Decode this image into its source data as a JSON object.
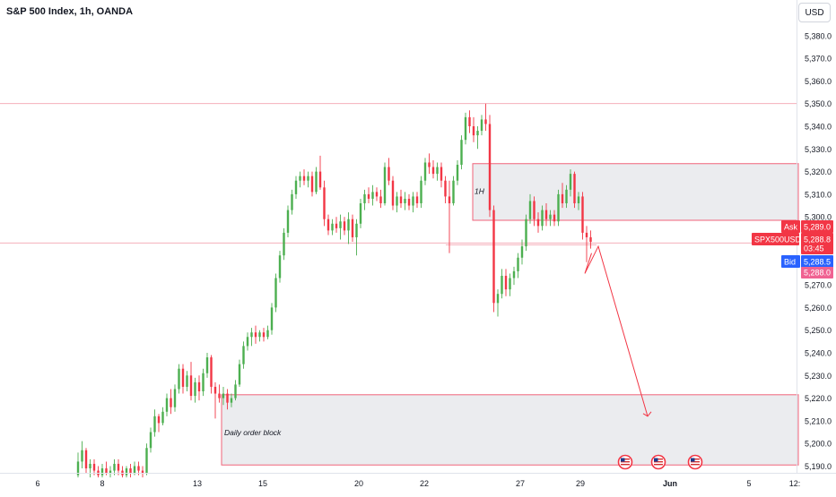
{
  "header": {
    "title": "S&P 500 Index, 1h, OANDA",
    "currency": "USD"
  },
  "chart_data": {
    "type": "candlestick",
    "title": "S&P 500 Index, 1h, OANDA",
    "ylim": [
      5186,
      5384
    ],
    "y_ticks": [
      5190,
      5200,
      5210,
      5220,
      5230,
      5240,
      5250,
      5260,
      5270,
      5280,
      5290,
      5300,
      5310,
      5320,
      5330,
      5340,
      5350,
      5360,
      5370,
      5380
    ],
    "y_tick_labels": [
      "5,190.0",
      "5,200.0",
      "5,210.0",
      "5,220.0",
      "5,230.0",
      "5,240.0",
      "5,250.0",
      "5,260.0",
      "5,270.0",
      "5,280.0",
      "5,290.0",
      "5,300.0",
      "5,310.0",
      "5,320.0",
      "5,330.0",
      "5,340.0",
      "5,350.0",
      "5,360.0",
      "5,370.0",
      "5,380.0"
    ],
    "x_ticks": [
      "6",
      "8",
      "13",
      "15",
      "20",
      "22",
      "27",
      "29",
      "Jun",
      "5",
      "12:"
    ],
    "up_color": "#4caf50",
    "down_color": "#f23645",
    "zones": [
      {
        "label": "1H",
        "y_top": 5323.5,
        "y_bottom": 5298.5
      },
      {
        "label": "Daily order block",
        "y_top": 5221.5,
        "y_bottom": 5190.5
      }
    ],
    "projection": [
      {
        "t": 0,
        "y": 5284
      },
      {
        "t": 1,
        "y": 5275
      },
      {
        "t": 2,
        "y": 5287
      },
      {
        "t": 3,
        "y": 5212
      }
    ],
    "reference_levels": [
      5350,
      5288.5
    ],
    "price_tags": {
      "ask_label": "Ask",
      "ask_value": "5,289.0",
      "symbol": "SPX500USD",
      "last_value": "5,288.8",
      "countdown": "03:45",
      "bid_label": "Bid",
      "bid_value": "5,288.5",
      "low_value": "5,288.0"
    },
    "event_icons": 3,
    "candles": [
      {
        "o": 5186,
        "h": 5196,
        "l": 5185,
        "c": 5192
      },
      {
        "o": 5192,
        "h": 5201,
        "l": 5189,
        "c": 5197
      },
      {
        "o": 5197,
        "h": 5198,
        "l": 5187,
        "c": 5189
      },
      {
        "o": 5189,
        "h": 5193,
        "l": 5185,
        "c": 5191
      },
      {
        "o": 5191,
        "h": 5193,
        "l": 5186,
        "c": 5188
      },
      {
        "o": 5188,
        "h": 5190,
        "l": 5185,
        "c": 5186
      },
      {
        "o": 5186,
        "h": 5191,
        "l": 5185,
        "c": 5189
      },
      {
        "o": 5189,
        "h": 5192,
        "l": 5186,
        "c": 5187
      },
      {
        "o": 5187,
        "h": 5190,
        "l": 5185,
        "c": 5188
      },
      {
        "o": 5188,
        "h": 5193,
        "l": 5186,
        "c": 5191
      },
      {
        "o": 5191,
        "h": 5193,
        "l": 5186,
        "c": 5188
      },
      {
        "o": 5188,
        "h": 5190,
        "l": 5185,
        "c": 5186
      },
      {
        "o": 5186,
        "h": 5190,
        "l": 5185,
        "c": 5189
      },
      {
        "o": 5189,
        "h": 5191,
        "l": 5185,
        "c": 5187
      },
      {
        "o": 5187,
        "h": 5192,
        "l": 5186,
        "c": 5190
      },
      {
        "o": 5190,
        "h": 5192,
        "l": 5186,
        "c": 5188
      },
      {
        "o": 5188,
        "h": 5190,
        "l": 5185,
        "c": 5187
      },
      {
        "o": 5187,
        "h": 5200,
        "l": 5186,
        "c": 5198
      },
      {
        "o": 5198,
        "h": 5207,
        "l": 5196,
        "c": 5205
      },
      {
        "o": 5205,
        "h": 5215,
        "l": 5203,
        "c": 5212
      },
      {
        "o": 5212,
        "h": 5213,
        "l": 5205,
        "c": 5209
      },
      {
        "o": 5209,
        "h": 5216,
        "l": 5208,
        "c": 5214
      },
      {
        "o": 5214,
        "h": 5222,
        "l": 5212,
        "c": 5220
      },
      {
        "o": 5220,
        "h": 5224,
        "l": 5213,
        "c": 5216
      },
      {
        "o": 5216,
        "h": 5226,
        "l": 5214,
        "c": 5224
      },
      {
        "o": 5224,
        "h": 5235,
        "l": 5222,
        "c": 5233
      },
      {
        "o": 5233,
        "h": 5235,
        "l": 5222,
        "c": 5225
      },
      {
        "o": 5225,
        "h": 5232,
        "l": 5223,
        "c": 5230
      },
      {
        "o": 5230,
        "h": 5236,
        "l": 5219,
        "c": 5221
      },
      {
        "o": 5221,
        "h": 5229,
        "l": 5218,
        "c": 5227
      },
      {
        "o": 5227,
        "h": 5230,
        "l": 5219,
        "c": 5223
      },
      {
        "o": 5223,
        "h": 5233,
        "l": 5221,
        "c": 5231
      },
      {
        "o": 5231,
        "h": 5240,
        "l": 5229,
        "c": 5238
      },
      {
        "o": 5238,
        "h": 5239,
        "l": 5222,
        "c": 5225
      },
      {
        "o": 5225,
        "h": 5227,
        "l": 5211,
        "c": 5222
      },
      {
        "o": 5222,
        "h": 5226,
        "l": 5218,
        "c": 5220
      },
      {
        "o": 5220,
        "h": 5225,
        "l": 5217,
        "c": 5222
      },
      {
        "o": 5222,
        "h": 5224,
        "l": 5215,
        "c": 5218
      },
      {
        "o": 5218,
        "h": 5222,
        "l": 5216,
        "c": 5220
      },
      {
        "o": 5220,
        "h": 5228,
        "l": 5219,
        "c": 5226
      },
      {
        "o": 5226,
        "h": 5237,
        "l": 5225,
        "c": 5235
      },
      {
        "o": 5235,
        "h": 5245,
        "l": 5233,
        "c": 5243
      },
      {
        "o": 5243,
        "h": 5249,
        "l": 5241,
        "c": 5247
      },
      {
        "o": 5247,
        "h": 5251,
        "l": 5243,
        "c": 5249
      },
      {
        "o": 5249,
        "h": 5252,
        "l": 5244,
        "c": 5247
      },
      {
        "o": 5247,
        "h": 5250,
        "l": 5245,
        "c": 5249
      },
      {
        "o": 5249,
        "h": 5251,
        "l": 5245,
        "c": 5247
      },
      {
        "o": 5247,
        "h": 5252,
        "l": 5246,
        "c": 5250
      },
      {
        "o": 5250,
        "h": 5262,
        "l": 5248,
        "c": 5260
      },
      {
        "o": 5260,
        "h": 5275,
        "l": 5258,
        "c": 5273
      },
      {
        "o": 5273,
        "h": 5285,
        "l": 5271,
        "c": 5283
      },
      {
        "o": 5283,
        "h": 5295,
        "l": 5281,
        "c": 5293
      },
      {
        "o": 5293,
        "h": 5305,
        "l": 5291,
        "c": 5303
      },
      {
        "o": 5303,
        "h": 5312,
        "l": 5301,
        "c": 5310
      },
      {
        "o": 5310,
        "h": 5318,
        "l": 5308,
        "c": 5316
      },
      {
        "o": 5316,
        "h": 5320,
        "l": 5313,
        "c": 5318
      },
      {
        "o": 5318,
        "h": 5321,
        "l": 5314,
        "c": 5316
      },
      {
        "o": 5316,
        "h": 5320,
        "l": 5313,
        "c": 5318
      },
      {
        "o": 5318,
        "h": 5320,
        "l": 5309,
        "c": 5311
      },
      {
        "o": 5311,
        "h": 5322,
        "l": 5310,
        "c": 5320
      },
      {
        "o": 5320,
        "h": 5327,
        "l": 5312,
        "c": 5313
      },
      {
        "o": 5313,
        "h": 5316,
        "l": 5296,
        "c": 5299
      },
      {
        "o": 5299,
        "h": 5301,
        "l": 5292,
        "c": 5294
      },
      {
        "o": 5294,
        "h": 5299,
        "l": 5292,
        "c": 5297
      },
      {
        "o": 5297,
        "h": 5300,
        "l": 5293,
        "c": 5295
      },
      {
        "o": 5295,
        "h": 5301,
        "l": 5290,
        "c": 5298
      },
      {
        "o": 5298,
        "h": 5300,
        "l": 5292,
        "c": 5294
      },
      {
        "o": 5294,
        "h": 5302,
        "l": 5288,
        "c": 5299
      },
      {
        "o": 5299,
        "h": 5301,
        "l": 5289,
        "c": 5291
      },
      {
        "o": 5291,
        "h": 5299,
        "l": 5283,
        "c": 5297
      },
      {
        "o": 5297,
        "h": 5308,
        "l": 5295,
        "c": 5306
      },
      {
        "o": 5306,
        "h": 5312,
        "l": 5303,
        "c": 5310
      },
      {
        "o": 5310,
        "h": 5313,
        "l": 5306,
        "c": 5308
      },
      {
        "o": 5308,
        "h": 5314,
        "l": 5305,
        "c": 5311
      },
      {
        "o": 5311,
        "h": 5313,
        "l": 5307,
        "c": 5309
      },
      {
        "o": 5309,
        "h": 5312,
        "l": 5304,
        "c": 5306
      },
      {
        "o": 5306,
        "h": 5324,
        "l": 5305,
        "c": 5322
      },
      {
        "o": 5322,
        "h": 5326,
        "l": 5314,
        "c": 5316
      },
      {
        "o": 5316,
        "h": 5318,
        "l": 5303,
        "c": 5305
      },
      {
        "o": 5305,
        "h": 5311,
        "l": 5302,
        "c": 5309
      },
      {
        "o": 5309,
        "h": 5312,
        "l": 5304,
        "c": 5306
      },
      {
        "o": 5306,
        "h": 5311,
        "l": 5303,
        "c": 5308
      },
      {
        "o": 5308,
        "h": 5310,
        "l": 5303,
        "c": 5305
      },
      {
        "o": 5305,
        "h": 5311,
        "l": 5302,
        "c": 5309
      },
      {
        "o": 5309,
        "h": 5311,
        "l": 5304,
        "c": 5306
      },
      {
        "o": 5306,
        "h": 5318,
        "l": 5304,
        "c": 5316
      },
      {
        "o": 5316,
        "h": 5326,
        "l": 5314,
        "c": 5324
      },
      {
        "o": 5324,
        "h": 5328,
        "l": 5319,
        "c": 5322
      },
      {
        "o": 5322,
        "h": 5325,
        "l": 5317,
        "c": 5319
      },
      {
        "o": 5319,
        "h": 5324,
        "l": 5316,
        "c": 5322
      },
      {
        "o": 5322,
        "h": 5324,
        "l": 5313,
        "c": 5316
      },
      {
        "o": 5316,
        "h": 5318,
        "l": 5306,
        "c": 5309
      },
      {
        "o": 5309,
        "h": 5316,
        "l": 5284,
        "c": 5306
      },
      {
        "o": 5306,
        "h": 5318,
        "l": 5305,
        "c": 5316
      },
      {
        "o": 5316,
        "h": 5325,
        "l": 5314,
        "c": 5323
      },
      {
        "o": 5323,
        "h": 5336,
        "l": 5321,
        "c": 5334
      },
      {
        "o": 5334,
        "h": 5346,
        "l": 5332,
        "c": 5344
      },
      {
        "o": 5344,
        "h": 5347,
        "l": 5337,
        "c": 5340
      },
      {
        "o": 5340,
        "h": 5344,
        "l": 5333,
        "c": 5336
      },
      {
        "o": 5336,
        "h": 5340,
        "l": 5330,
        "c": 5338
      },
      {
        "o": 5338,
        "h": 5345,
        "l": 5336,
        "c": 5343
      },
      {
        "o": 5343,
        "h": 5350,
        "l": 5338,
        "c": 5341
      },
      {
        "o": 5341,
        "h": 5345,
        "l": 5300,
        "c": 5303
      },
      {
        "o": 5303,
        "h": 5305,
        "l": 5258,
        "c": 5262
      },
      {
        "o": 5262,
        "h": 5268,
        "l": 5256,
        "c": 5266
      },
      {
        "o": 5266,
        "h": 5277,
        "l": 5264,
        "c": 5274
      },
      {
        "o": 5274,
        "h": 5277,
        "l": 5265,
        "c": 5268
      },
      {
        "o": 5268,
        "h": 5275,
        "l": 5265,
        "c": 5273
      },
      {
        "o": 5273,
        "h": 5278,
        "l": 5270,
        "c": 5276
      },
      {
        "o": 5276,
        "h": 5284,
        "l": 5273,
        "c": 5282
      },
      {
        "o": 5282,
        "h": 5290,
        "l": 5279,
        "c": 5287
      },
      {
        "o": 5287,
        "h": 5301,
        "l": 5285,
        "c": 5299
      },
      {
        "o": 5299,
        "h": 5310,
        "l": 5297,
        "c": 5307
      },
      {
        "o": 5307,
        "h": 5309,
        "l": 5296,
        "c": 5299
      },
      {
        "o": 5299,
        "h": 5302,
        "l": 5293,
        "c": 5296
      },
      {
        "o": 5296,
        "h": 5305,
        "l": 5294,
        "c": 5303
      },
      {
        "o": 5303,
        "h": 5306,
        "l": 5296,
        "c": 5299
      },
      {
        "o": 5299,
        "h": 5303,
        "l": 5296,
        "c": 5301
      },
      {
        "o": 5301,
        "h": 5303,
        "l": 5296,
        "c": 5298
      },
      {
        "o": 5298,
        "h": 5312,
        "l": 5296,
        "c": 5310
      },
      {
        "o": 5310,
        "h": 5315,
        "l": 5304,
        "c": 5306
      },
      {
        "o": 5306,
        "h": 5314,
        "l": 5304,
        "c": 5312
      },
      {
        "o": 5312,
        "h": 5321,
        "l": 5309,
        "c": 5319
      },
      {
        "o": 5319,
        "h": 5320,
        "l": 5304,
        "c": 5306
      },
      {
        "o": 5306,
        "h": 5311,
        "l": 5303,
        "c": 5309
      },
      {
        "o": 5309,
        "h": 5311,
        "l": 5290,
        "c": 5293
      },
      {
        "o": 5293,
        "h": 5296,
        "l": 5280,
        "c": 5291
      },
      {
        "o": 5291,
        "h": 5294,
        "l": 5286,
        "c": 5289
      }
    ]
  }
}
